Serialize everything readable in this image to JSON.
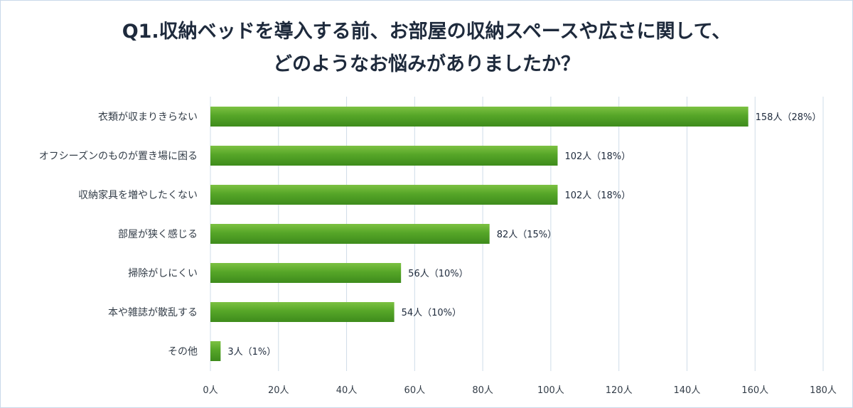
{
  "chart_data": {
    "type": "bar",
    "orientation": "horizontal",
    "title_lines": [
      "Q1.収納ベッドを導入する前、お部屋の収納スペースや広さに関して、",
      "どのようなお悩みがありましたか？"
    ],
    "categories": [
      "衣類が収まりきらない",
      "オフシーズンのものが置き場に困る",
      "収納家具を増やしたくない",
      "部屋が狭く感じる",
      "掃除がしにくい",
      "本や雑誌が散乱する",
      "その他"
    ],
    "values": [
      158,
      102,
      102,
      82,
      56,
      54,
      3
    ],
    "value_labels": [
      "158人（28%）",
      "102人（18%）",
      "102人（18%）",
      "82人（15%）",
      "56人（10%）",
      "54人（10%）",
      "3人（1%）"
    ],
    "x_ticks": [
      0,
      20,
      40,
      60,
      80,
      100,
      120,
      140,
      160,
      180
    ],
    "x_tick_labels": [
      "0人",
      "20人",
      "40人",
      "60人",
      "80人",
      "100人",
      "120人",
      "140人",
      "160人",
      "180人"
    ],
    "xlim": [
      0,
      180
    ],
    "grid": true,
    "colors": {
      "bar_top": "#7cc142",
      "bar_mid": "#56a628",
      "bar_bottom": "#3e8b1c",
      "grid": "#cfdce8",
      "frame": "#c9d9ea"
    }
  }
}
